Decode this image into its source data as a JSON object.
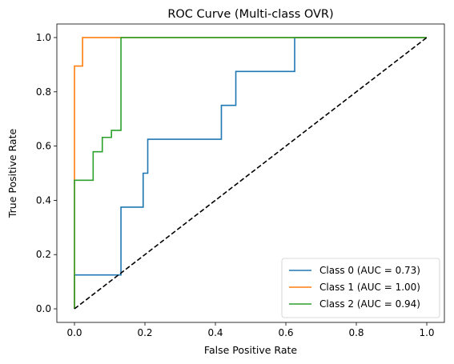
{
  "chart_data": {
    "type": "line",
    "title": "ROC Curve (Multi-class OVR)",
    "xlabel": "False Positive Rate",
    "ylabel": "True Positive Rate",
    "xlim": [
      -0.05,
      1.05
    ],
    "ylim": [
      -0.05,
      1.05
    ],
    "xticks": [
      "0.0",
      "0.2",
      "0.4",
      "0.6",
      "0.8",
      "1.0"
    ],
    "yticks": [
      "0.0",
      "0.2",
      "0.4",
      "0.6",
      "0.8",
      "1.0"
    ],
    "grid": false,
    "legend_position": "lower right",
    "series": [
      {
        "name": "Class 0 (AUC = 0.73)",
        "color": "#1f77b4",
        "x": [
          0,
          0,
          0.132,
          0.132,
          0.132,
          0.195,
          0.195,
          0.208,
          0.208,
          0.417,
          0.417,
          0.458,
          0.458,
          0.625,
          0.625,
          1.0
        ],
        "y": [
          0,
          0.125,
          0.125,
          0.125,
          0.375,
          0.375,
          0.5,
          0.5,
          0.625,
          0.625,
          0.75,
          0.75,
          0.875,
          0.875,
          1.0,
          1.0
        ]
      },
      {
        "name": "Class 1 (AUC = 1.00)",
        "color": "#ff7f0e",
        "x": [
          0,
          0,
          0,
          0.023,
          0.023,
          1.0
        ],
        "y": [
          0,
          0.895,
          0.895,
          0.895,
          1.0,
          1.0
        ]
      },
      {
        "name": "Class 2 (AUC = 0.94)",
        "color": "#2ca02c",
        "x": [
          0,
          0,
          0.053,
          0.053,
          0.079,
          0.079,
          0.105,
          0.105,
          0.132,
          0.132,
          1.0
        ],
        "y": [
          0,
          0.474,
          0.474,
          0.579,
          0.579,
          0.632,
          0.632,
          0.658,
          0.658,
          1.0,
          1.0
        ]
      }
    ],
    "reference_line": {
      "x": [
        0,
        1
      ],
      "y": [
        0,
        1
      ],
      "color": "#000000",
      "style": "dashed"
    }
  }
}
